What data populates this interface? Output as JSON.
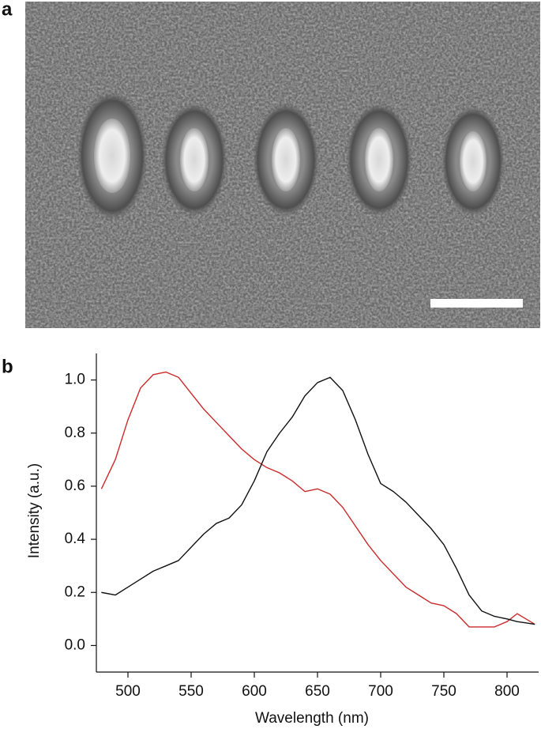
{
  "panel_labels": [
    "a",
    "b"
  ],
  "chart_data": {
    "type": "line",
    "xlabel": "Wavelength (nm)",
    "ylabel": "Intensity (a.u.)",
    "x": [
      479,
      490,
      500,
      510,
      520,
      530,
      540,
      550,
      560,
      570,
      580,
      590,
      600,
      610,
      620,
      630,
      640,
      650,
      660,
      670,
      680,
      690,
      700,
      710,
      720,
      730,
      740,
      750,
      760,
      770,
      780,
      790,
      800,
      808,
      815,
      822
    ],
    "series": [
      {
        "color": "#cc2a2a",
        "values": [
          0.59,
          0.7,
          0.85,
          0.97,
          1.02,
          1.03,
          1.01,
          0.95,
          0.89,
          0.84,
          0.79,
          0.74,
          0.7,
          0.67,
          0.65,
          0.62,
          0.58,
          0.59,
          0.57,
          0.52,
          0.45,
          0.38,
          0.32,
          0.27,
          0.22,
          0.19,
          0.16,
          0.15,
          0.12,
          0.07,
          0.07,
          0.07,
          0.09,
          0.12,
          0.1,
          0.08
        ]
      },
      {
        "color": "#111111",
        "values": [
          0.2,
          0.19,
          0.22,
          0.25,
          0.28,
          0.3,
          0.32,
          0.37,
          0.42,
          0.46,
          0.48,
          0.53,
          0.62,
          0.73,
          0.8,
          0.86,
          0.94,
          0.99,
          1.01,
          0.96,
          0.85,
          0.72,
          0.61,
          0.58,
          0.54,
          0.49,
          0.44,
          0.38,
          0.29,
          0.19,
          0.13,
          0.11,
          0.1,
          0.09,
          0.085,
          0.08
        ]
      }
    ],
    "xlim": [
      475,
      825
    ],
    "ylim": [
      -0.1,
      1.1
    ],
    "xticks": [
      500,
      550,
      600,
      650,
      700,
      750,
      800
    ],
    "yticks": [
      {
        "value": 0,
        "label": "0.0"
      },
      0.2,
      0.4,
      0.6,
      0.8,
      {
        "value": 1,
        "label": "1.0"
      }
    ]
  }
}
